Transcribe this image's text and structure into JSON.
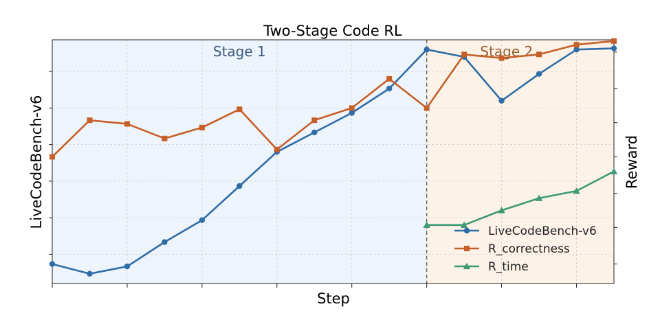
{
  "chart_data": {
    "type": "line",
    "title": "Two-Stage Code RL",
    "xlabel": "Step",
    "ylabel": "LiveCodeBench-v6",
    "ylabel_right": "Reward",
    "x": [
      0,
      1,
      2,
      3,
      4,
      5,
      6,
      7,
      8,
      9,
      10,
      11,
      12,
      13,
      14,
      15
    ],
    "xlim": [
      0,
      15
    ],
    "xticks": [
      0,
      2,
      4,
      6,
      8,
      10,
      12,
      14
    ],
    "ylim_left": [
      0,
      100
    ],
    "yticks_left": [
      12,
      27,
      42,
      57,
      72,
      87
    ],
    "ylim_right": [
      0,
      100
    ],
    "yticks_right": [
      8,
      23,
      37,
      52,
      66,
      80,
      95
    ],
    "stage_boundary": 10,
    "stages": [
      {
        "label": "Stage 1",
        "x_range": [
          0,
          10
        ],
        "color": "#EEF4FB",
        "text_color": "#3D5A80"
      },
      {
        "label": "Stage 2",
        "x_range": [
          10,
          15
        ],
        "color": "#FCF2E8",
        "text_color": "#9A6030"
      }
    ],
    "series": [
      {
        "name": "LiveCodeBench-v6",
        "axis": "left",
        "color": "#2F6DA7",
        "marker": "circle",
        "x": [
          0,
          1,
          2,
          3,
          4,
          5,
          6,
          7,
          8,
          9,
          10,
          11,
          12,
          13,
          14,
          15
        ],
        "values": [
          8,
          4,
          7,
          17,
          26,
          40,
          54,
          62,
          70,
          80,
          96,
          93,
          75,
          86,
          96,
          96.5
        ]
      },
      {
        "name": "R_correctness",
        "axis": "right",
        "color": "#C65F28",
        "marker": "square",
        "x": [
          0,
          1,
          2,
          3,
          4,
          5,
          6,
          7,
          8,
          9,
          10,
          11,
          12,
          13,
          14,
          15
        ],
        "values": [
          52,
          67,
          65.5,
          59.5,
          64,
          71.5,
          55,
          67,
          72,
          84,
          72,
          94,
          92.5,
          94,
          98,
          99.5
        ]
      },
      {
        "name": "R_time",
        "axis": "right",
        "color": "#3E9A74",
        "marker": "triangle",
        "x": [
          10,
          11,
          12,
          13,
          14,
          15
        ],
        "values": [
          24,
          24,
          30,
          35,
          38,
          46
        ]
      }
    ],
    "grid": true,
    "legend_position": "bottom-right"
  }
}
